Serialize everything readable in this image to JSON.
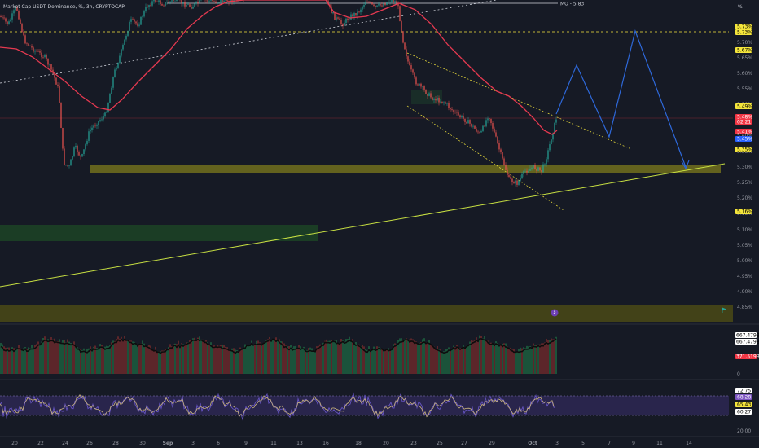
{
  "header": {
    "title": "Market Cap USDT Dominance, %, 3h, CRYPTOCAP",
    "mo_label": "MO - 5.83",
    "unit_label": "%"
  },
  "price_axis": {
    "ticks": [
      "5.70%",
      "5.65%",
      "5.60%",
      "5.55%",
      "5.50%",
      "5.45%",
      "5.40%",
      "5.35%",
      "5.30%",
      "5.25%",
      "5.20%",
      "5.15%",
      "5.10%",
      "5.05%",
      "5.00%",
      "4.95%",
      "4.90%",
      "4.85%"
    ],
    "badges": [
      {
        "text": "5.73%",
        "bg": "#f5e63c",
        "fg": "#000000"
      },
      {
        "text": "5.73%",
        "bg": "#f5e63c",
        "fg": "#000000"
      },
      {
        "text": "5.67%",
        "bg": "#f5e63c",
        "fg": "#000000"
      },
      {
        "text": "5.49%",
        "bg": "#f5e63c",
        "fg": "#000000"
      },
      {
        "text": "5.48%",
        "bg": "#f23645",
        "fg": "#ffffff"
      },
      {
        "text": "02:21",
        "bg": "#f23645",
        "fg": "#ffffff"
      },
      {
        "text": "5.45%",
        "bg": "#2962ff",
        "fg": "#ffffff"
      },
      {
        "text": "5.41%",
        "bg": "#f23645",
        "fg": "#ffffff"
      },
      {
        "text": "5.35%",
        "bg": "#f5e63c",
        "fg": "#000000"
      },
      {
        "text": "5.16%",
        "bg": "#f5e63c",
        "fg": "#000000"
      }
    ]
  },
  "volume_axis": {
    "badges": [
      {
        "text": "667.479B",
        "bg": "#ffffff",
        "fg": "#000000"
      },
      {
        "text": "667.479B",
        "bg": "#ffffff",
        "fg": "#000000"
      },
      {
        "text": "371.519B",
        "bg": "#f23645",
        "fg": "#ffffff"
      }
    ],
    "zero": "0"
  },
  "rsi_axis": {
    "ticks": [
      "20.00"
    ],
    "badges": [
      {
        "text": "72.75",
        "bg": "#ffffff",
        "fg": "#000000"
      },
      {
        "text": "68.28",
        "bg": "#7e57c2",
        "fg": "#ffffff"
      },
      {
        "text": "65.43",
        "bg": "#f5e63c",
        "fg": "#000000"
      },
      {
        "text": "60.27",
        "bg": "#ffffff",
        "fg": "#000000"
      }
    ]
  },
  "time_axis": {
    "labels": [
      "20",
      "22",
      "24",
      "26",
      "28",
      "30",
      "Sep",
      "3",
      "6",
      "9",
      "11",
      "13",
      "16",
      "18",
      "20",
      "23",
      "25",
      "27",
      "29",
      "Oct",
      "3",
      "5",
      "7",
      "9",
      "11",
      "14"
    ]
  },
  "colors": {
    "background": "#161a25",
    "ma_line": "#e53950",
    "projection": "#2e68d9",
    "trendline": "#c8e042",
    "support_zone": "#6b6a1e",
    "green_zone": "#1e4a26",
    "up_candle": "#26a69a",
    "down_candle": "#ef5350",
    "rsi_line": "#c9b37f"
  },
  "icons": [
    "bolt-icon",
    "flag-icon"
  ]
}
